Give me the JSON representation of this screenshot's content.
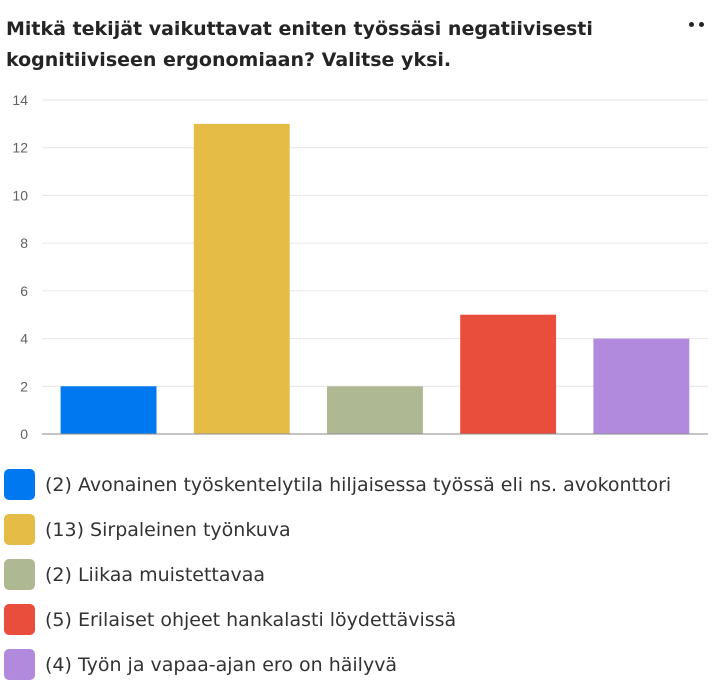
{
  "title": "Mitkä tekijät vaikuttavat eniten työssäsi negatiivisesti kognitiiviseen ergonomiaan? Valitse yksi.",
  "icons": {
    "more": "more-options-icon"
  },
  "chart_data": {
    "type": "bar",
    "categories": [
      "(2) Avonainen työskentelytila hiljaisessa työssä eli ns. avokonttori",
      "(13) Sirpaleinen työnkuva",
      "(2) Liikaa muistettavaa",
      "(5) Erilaiset ohjeet hankalasti löydettävissä",
      "(4) Työn ja vapaa-ajan ero on häilyvä"
    ],
    "values": [
      2,
      13,
      2,
      5,
      4
    ],
    "colors": [
      "#0078f0",
      "#e5bc45",
      "#aeb994",
      "#e94e3d",
      "#b189dd"
    ],
    "ylim": [
      0,
      14
    ],
    "yticks": [
      "0",
      "2",
      "4",
      "6",
      "8",
      "10",
      "12",
      "14"
    ],
    "grid": true,
    "legend_position": "bottom"
  }
}
